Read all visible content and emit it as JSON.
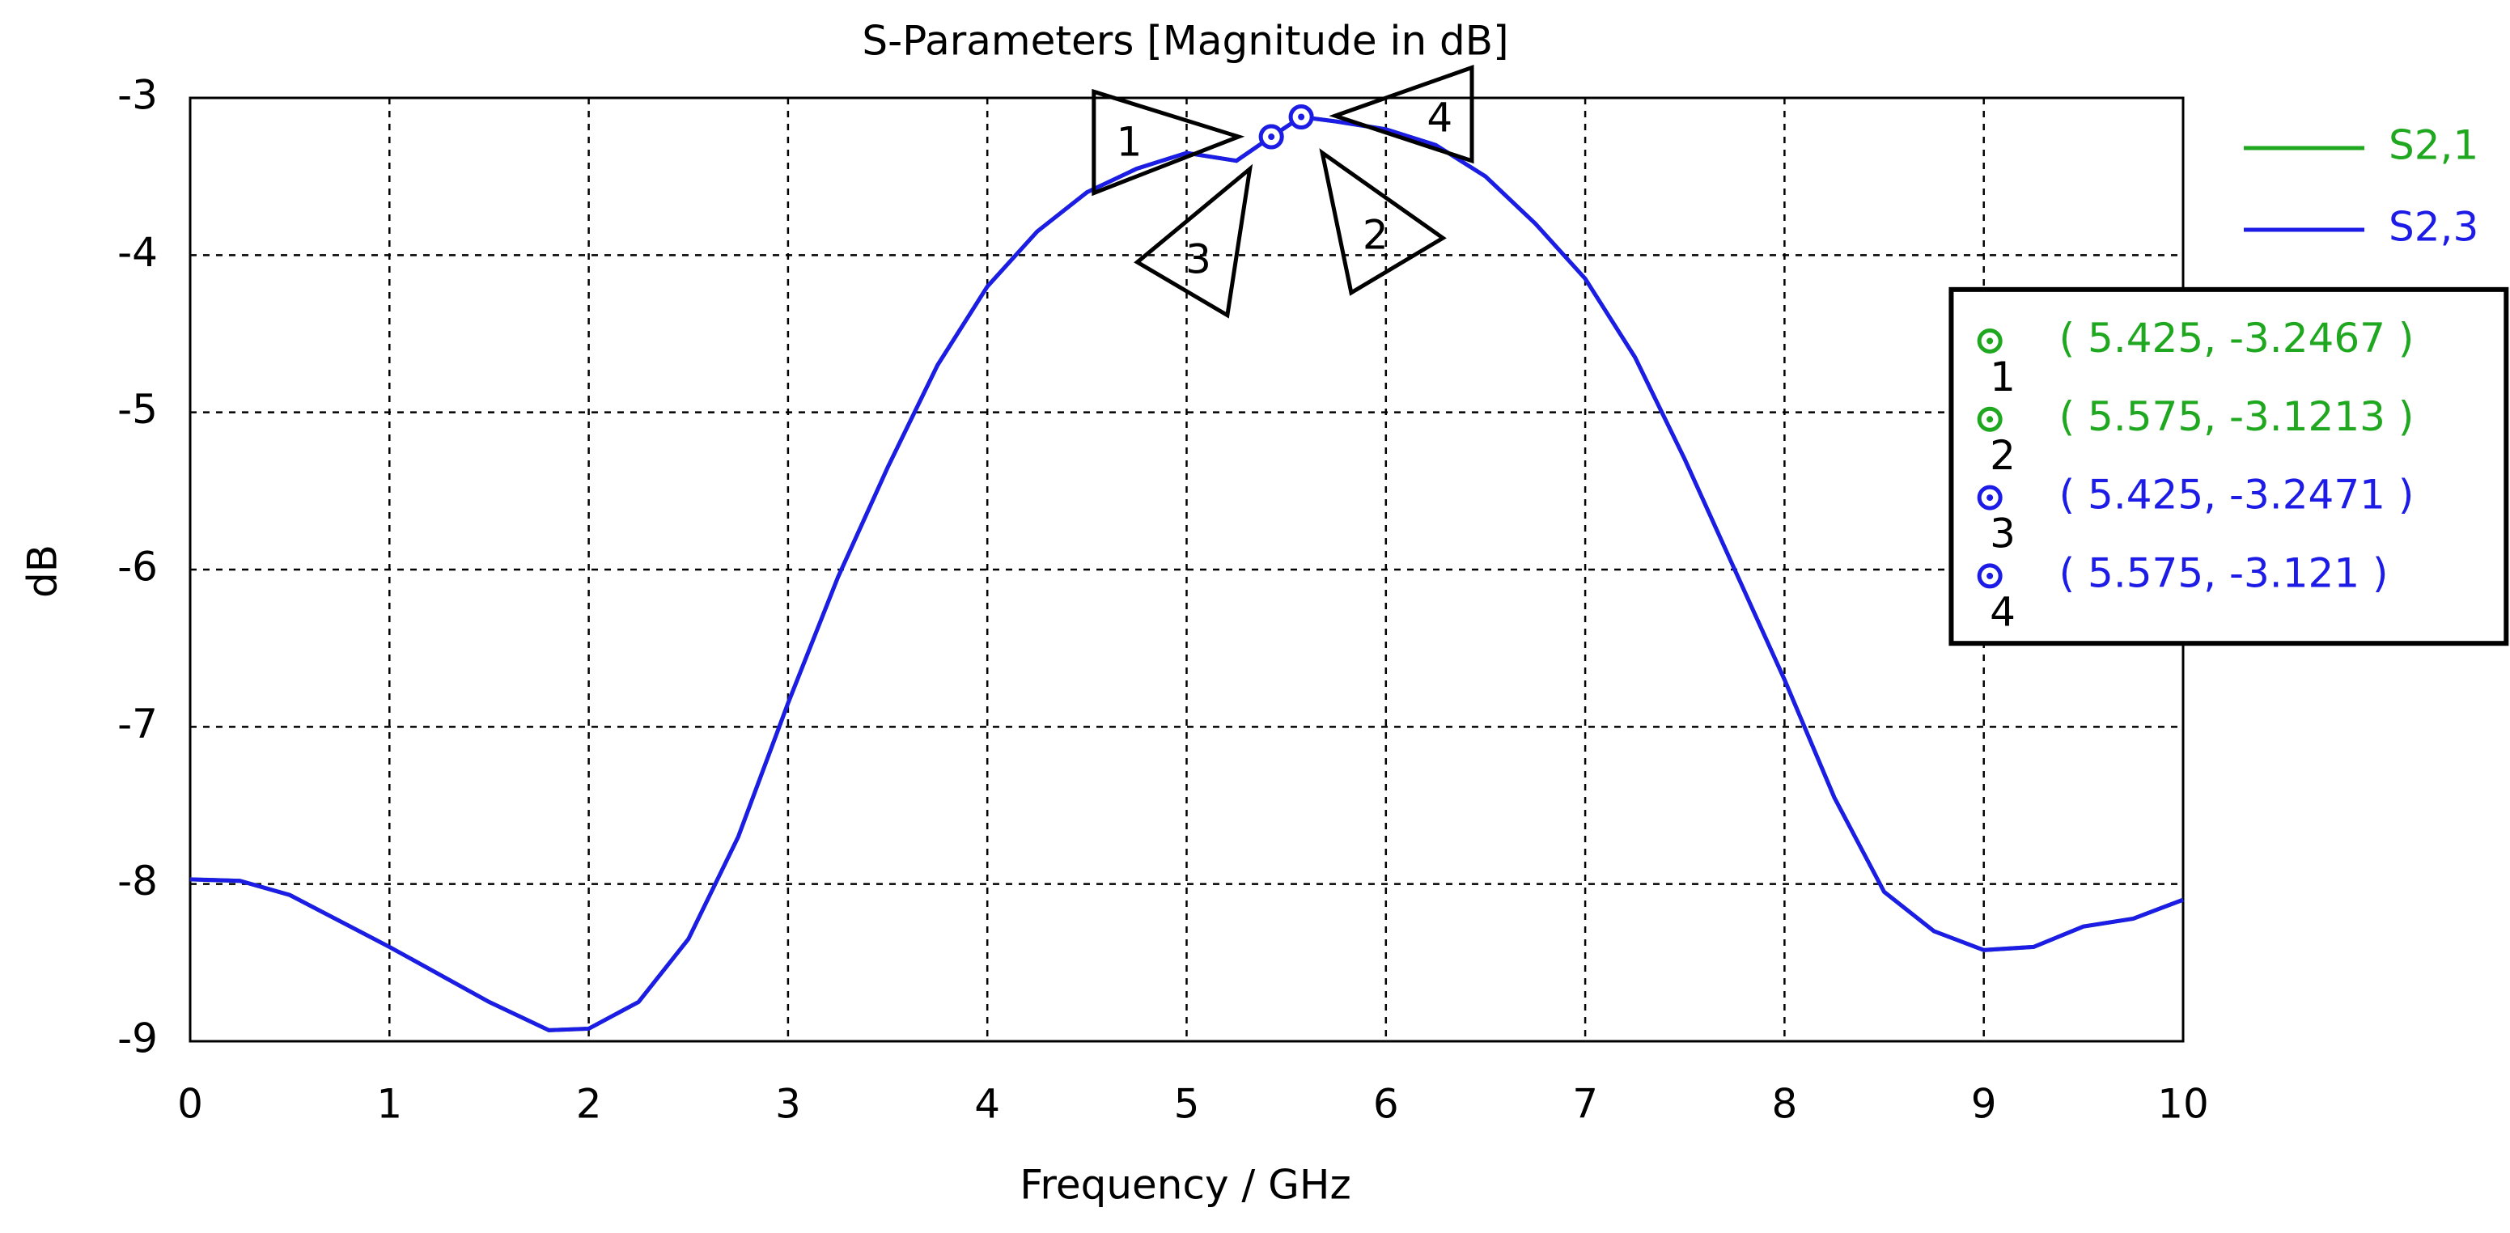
{
  "chart_data": {
    "type": "line",
    "title": "S-Parameters [Magnitude in dB]",
    "xlabel": "Frequency / GHz",
    "ylabel": "dB",
    "x": [
      0,
      0.25,
      0.5,
      1,
      1.5,
      1.8,
      2,
      2.25,
      2.5,
      2.75,
      3,
      3.25,
      3.5,
      3.75,
      4,
      4.25,
      4.5,
      4.75,
      5,
      5.25,
      5.425,
      5.575,
      5.75,
      6,
      6.25,
      6.5,
      6.75,
      7,
      7.25,
      7.5,
      7.75,
      8,
      8.25,
      8.5,
      8.75,
      9,
      9.25,
      9.5,
      9.75,
      10
    ],
    "series": [
      {
        "name": "S2,1",
        "color": "#1fa81f",
        "values": [
          -7.97,
          -7.98,
          -8.07,
          -8.4,
          -8.75,
          -8.93,
          -8.92,
          -8.75,
          -8.35,
          -7.7,
          -6.85,
          -6.05,
          -5.35,
          -4.7,
          -4.2,
          -3.85,
          -3.6,
          -3.45,
          -3.35,
          -3.4,
          -3.2467,
          -3.1213,
          -3.15,
          -3.2,
          -3.3,
          -3.5,
          -3.8,
          -4.15,
          -4.65,
          -5.3,
          -6.0,
          -6.7,
          -7.45,
          -8.05,
          -8.3,
          -8.42,
          -8.4,
          -8.27,
          -8.22,
          -8.1
        ]
      },
      {
        "name": "S2,3",
        "color": "#1c1ce6",
        "values": [
          -7.97,
          -7.98,
          -8.07,
          -8.4,
          -8.75,
          -8.93,
          -8.92,
          -8.75,
          -8.35,
          -7.7,
          -6.85,
          -6.05,
          -5.35,
          -4.7,
          -4.2,
          -3.85,
          -3.6,
          -3.45,
          -3.35,
          -3.4,
          -3.2471,
          -3.121,
          -3.15,
          -3.2,
          -3.3,
          -3.5,
          -3.8,
          -4.15,
          -4.65,
          -5.3,
          -6.0,
          -6.7,
          -7.45,
          -8.05,
          -8.3,
          -8.42,
          -8.4,
          -8.27,
          -8.22,
          -8.1
        ]
      }
    ],
    "markers": [
      {
        "label": "1",
        "x": 5.425,
        "y": -3.2467,
        "text": "( 5.425, -3.2467 )",
        "color": "#1fa81f"
      },
      {
        "label": "2",
        "x": 5.575,
        "y": -3.1213,
        "text": "( 5.575, -3.1213 )",
        "color": "#1fa81f"
      },
      {
        "label": "3",
        "x": 5.425,
        "y": -3.2471,
        "text": "( 5.425, -3.2471 )",
        "color": "#1c1ce6"
      },
      {
        "label": "4",
        "x": 5.575,
        "y": -3.121,
        "text": "( 5.575, -3.121 )",
        "color": "#1c1ce6"
      }
    ],
    "xlim": [
      0,
      10
    ],
    "ylim": [
      -9,
      -3
    ],
    "xticks": [
      0,
      1,
      2,
      3,
      4,
      5,
      6,
      7,
      8,
      9,
      10
    ],
    "yticks": [
      -3,
      -4,
      -5,
      -6,
      -7,
      -8,
      -9
    ],
    "grid": true,
    "legend": "top-right"
  }
}
